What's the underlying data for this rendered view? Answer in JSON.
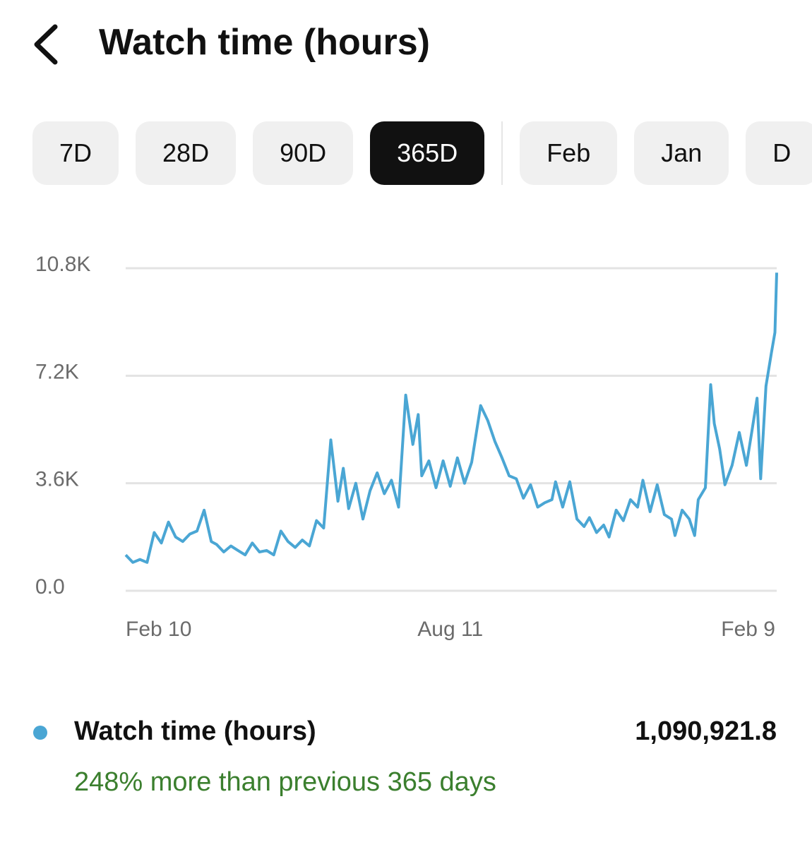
{
  "header": {
    "title": "Watch time (hours)"
  },
  "tabs": {
    "items": [
      "7D",
      "28D",
      "90D",
      "365D",
      "Feb",
      "Jan",
      "D"
    ],
    "selected": 3
  },
  "chart_data": {
    "type": "line",
    "x": [
      0,
      4,
      8,
      12,
      16,
      20,
      24,
      28,
      32,
      36,
      40,
      44,
      48,
      51,
      55,
      59,
      63,
      67,
      71,
      75,
      79,
      83,
      87,
      91,
      95,
      99,
      103,
      107,
      111,
      115,
      119,
      122,
      125,
      129,
      133,
      137,
      141,
      145,
      149,
      153,
      157,
      161,
      164,
      166,
      170,
      174,
      178,
      182,
      186,
      190,
      194,
      199,
      203,
      207,
      211,
      215,
      219,
      223,
      227,
      231,
      235,
      239,
      241,
      245,
      249,
      253,
      257,
      260,
      264,
      268,
      271,
      275,
      279,
      283,
      287,
      290,
      294,
      298,
      302,
      306,
      308,
      312,
      316,
      319,
      321,
      325,
      328,
      330,
      333,
      336,
      340,
      344,
      348,
      351,
      354,
      356,
      359,
      362,
      364,
      365
    ],
    "series": [
      {
        "name": "Watch time (hours)",
        "color": "#4aa6d4",
        "values": [
          1200,
          950,
          1050,
          950,
          1950,
          1600,
          2300,
          1800,
          1650,
          1900,
          2000,
          2700,
          1650,
          1550,
          1300,
          1500,
          1350,
          1200,
          1600,
          1300,
          1350,
          1200,
          2000,
          1650,
          1450,
          1700,
          1500,
          2350,
          2100,
          5050,
          3000,
          4100,
          2750,
          3600,
          2400,
          3350,
          3950,
          3250,
          3700,
          2800,
          6550,
          4900,
          5900,
          3850,
          4350,
          3450,
          4350,
          3500,
          4450,
          3600,
          4300,
          6200,
          5700,
          5000,
          4450,
          3850,
          3750,
          3100,
          3550,
          2800,
          2950,
          3050,
          3650,
          2800,
          3650,
          2400,
          2150,
          2450,
          1950,
          2200,
          1800,
          2700,
          2350,
          3050,
          2800,
          3700,
          2650,
          3550,
          2550,
          2400,
          1850,
          2700,
          2400,
          1850,
          3050,
          3450,
          6900,
          5600,
          4750,
          3550,
          4200,
          5300,
          4200,
          5300,
          6450,
          3750,
          6850,
          7950,
          8650,
          10650
        ]
      }
    ],
    "xlim": [
      0,
      365
    ],
    "xticks": [
      {
        "value": 0,
        "label": "Feb 10"
      },
      {
        "value": 182,
        "label": "Aug 11"
      },
      {
        "value": 365,
        "label": "Feb 9"
      }
    ],
    "ylim": [
      0,
      10800
    ],
    "yticks": [
      {
        "value": 0,
        "label": "0.0"
      },
      {
        "value": 3600,
        "label": "3.6K"
      },
      {
        "value": 7200,
        "label": "7.2K"
      },
      {
        "value": 10800,
        "label": "10.8K"
      }
    ],
    "grid": true
  },
  "summary": {
    "total": "1,090,921.8",
    "change": "248% more than previous 365 days"
  }
}
